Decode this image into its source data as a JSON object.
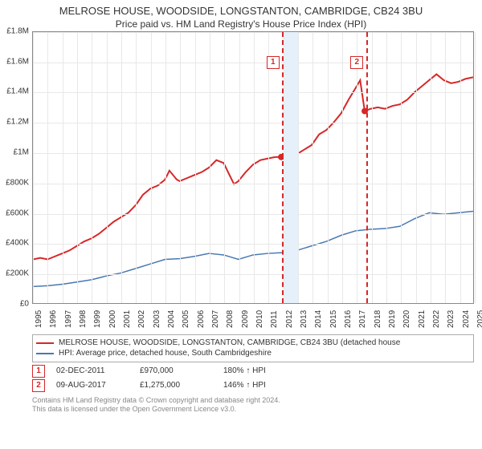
{
  "title": "MELROSE HOUSE, WOODSIDE, LONGSTANTON, CAMBRIDGE, CB24 3BU",
  "subtitle": "Price paid vs. HM Land Registry's House Price Index (HPI)",
  "chart": {
    "type": "line",
    "background_color": "#ffffff",
    "grid_color": "#e8e8e8",
    "border_color": "#888888",
    "y": {
      "min": 0,
      "max": 1800000,
      "step": 200000,
      "labels": [
        "£0",
        "£200K",
        "£400K",
        "£600K",
        "£800K",
        "£1M",
        "£1.2M",
        "£1.4M",
        "£1.6M",
        "£1.8M"
      ]
    },
    "x": {
      "min": 1995,
      "max": 2025,
      "labels": [
        "1995",
        "1996",
        "1997",
        "1998",
        "1999",
        "2000",
        "2001",
        "2002",
        "2003",
        "2004",
        "2005",
        "2006",
        "2007",
        "2008",
        "2009",
        "2010",
        "2011",
        "2012",
        "2013",
        "2014",
        "2015",
        "2016",
        "2017",
        "2018",
        "2019",
        "2020",
        "2021",
        "2022",
        "2023",
        "2024",
        "2025"
      ]
    },
    "band": {
      "start_year": 2012,
      "end_year": 2013,
      "color": "#e6f0fa"
    },
    "markers": [
      {
        "id": "1",
        "year": 2011.92,
        "box_year": 2011.3,
        "box_y": 1600000
      },
      {
        "id": "2",
        "year": 2017.61,
        "box_year": 2017.0,
        "box_y": 1600000
      }
    ],
    "marker_color": "#d62728",
    "series": [
      {
        "name": "red_house",
        "color": "#d62728",
        "width": 2,
        "label": "MELROSE HOUSE, WOODSIDE, LONGSTANTON, CAMBRIDGE, CB24 3BU (detached house",
        "points": [
          [
            1995,
            290000
          ],
          [
            1995.5,
            300000
          ],
          [
            1996,
            290000
          ],
          [
            1996.5,
            310000
          ],
          [
            1997,
            330000
          ],
          [
            1997.5,
            350000
          ],
          [
            1998,
            380000
          ],
          [
            1998.5,
            410000
          ],
          [
            1999,
            430000
          ],
          [
            1999.5,
            460000
          ],
          [
            2000,
            500000
          ],
          [
            2000.5,
            540000
          ],
          [
            2001,
            570000
          ],
          [
            2001.5,
            600000
          ],
          [
            2002,
            650000
          ],
          [
            2002.5,
            720000
          ],
          [
            2003,
            760000
          ],
          [
            2003.5,
            780000
          ],
          [
            2004,
            820000
          ],
          [
            2004.3,
            880000
          ],
          [
            2004.8,
            820000
          ],
          [
            2005,
            810000
          ],
          [
            2005.5,
            830000
          ],
          [
            2006,
            850000
          ],
          [
            2006.5,
            870000
          ],
          [
            2007,
            900000
          ],
          [
            2007.5,
            950000
          ],
          [
            2008,
            930000
          ],
          [
            2008.3,
            870000
          ],
          [
            2008.7,
            790000
          ],
          [
            2009,
            810000
          ],
          [
            2009.5,
            870000
          ],
          [
            2010,
            920000
          ],
          [
            2010.5,
            950000
          ],
          [
            2011,
            960000
          ],
          [
            2011.5,
            970000
          ],
          [
            2011.92,
            970000
          ],
          [
            2012.4,
            960000
          ],
          [
            2013,
            990000
          ],
          [
            2013.5,
            1020000
          ],
          [
            2014,
            1050000
          ],
          [
            2014.5,
            1120000
          ],
          [
            2015,
            1150000
          ],
          [
            2015.5,
            1200000
          ],
          [
            2016,
            1260000
          ],
          [
            2016.5,
            1350000
          ],
          [
            2017,
            1430000
          ],
          [
            2017.3,
            1480000
          ],
          [
            2017.61,
            1275000
          ],
          [
            2018,
            1290000
          ],
          [
            2018.5,
            1300000
          ],
          [
            2019,
            1290000
          ],
          [
            2019.5,
            1310000
          ],
          [
            2020,
            1320000
          ],
          [
            2020.5,
            1350000
          ],
          [
            2021,
            1400000
          ],
          [
            2021.5,
            1440000
          ],
          [
            2022,
            1480000
          ],
          [
            2022.5,
            1520000
          ],
          [
            2023,
            1480000
          ],
          [
            2023.5,
            1460000
          ],
          [
            2024,
            1470000
          ],
          [
            2024.5,
            1490000
          ],
          [
            2025,
            1500000
          ]
        ],
        "dots": [
          [
            2011.92,
            970000
          ],
          [
            2017.61,
            1275000
          ]
        ]
      },
      {
        "name": "blue_hpi",
        "color": "#4878b0",
        "width": 1.5,
        "label": "HPI: Average price, detached house, South Cambridgeshire",
        "points": [
          [
            1995,
            110000
          ],
          [
            1996,
            115000
          ],
          [
            1997,
            125000
          ],
          [
            1998,
            140000
          ],
          [
            1999,
            155000
          ],
          [
            2000,
            180000
          ],
          [
            2001,
            200000
          ],
          [
            2002,
            230000
          ],
          [
            2003,
            260000
          ],
          [
            2004,
            290000
          ],
          [
            2005,
            295000
          ],
          [
            2006,
            310000
          ],
          [
            2007,
            330000
          ],
          [
            2008,
            320000
          ],
          [
            2009,
            290000
          ],
          [
            2010,
            320000
          ],
          [
            2011,
            330000
          ],
          [
            2012,
            335000
          ],
          [
            2013,
            350000
          ],
          [
            2014,
            380000
          ],
          [
            2015,
            410000
          ],
          [
            2016,
            450000
          ],
          [
            2017,
            480000
          ],
          [
            2018,
            490000
          ],
          [
            2019,
            495000
          ],
          [
            2020,
            510000
          ],
          [
            2021,
            560000
          ],
          [
            2022,
            600000
          ],
          [
            2023,
            590000
          ],
          [
            2024,
            600000
          ],
          [
            2025,
            610000
          ]
        ]
      }
    ]
  },
  "legend": {
    "series1": "MELROSE HOUSE, WOODSIDE, LONGSTANTON, CAMBRIDGE, CB24 3BU (detached house",
    "series2": "HPI: Average price, detached house, South Cambridgeshire"
  },
  "data_rows": [
    {
      "id": "1",
      "date": "02-DEC-2011",
      "price": "£970,000",
      "pct": "180% ↑ HPI"
    },
    {
      "id": "2",
      "date": "09-AUG-2017",
      "price": "£1,275,000",
      "pct": "146% ↑ HPI"
    }
  ],
  "copyright": {
    "line1": "Contains HM Land Registry data © Crown copyright and database right 2024.",
    "line2": "This data is licensed under the Open Government Licence v3.0."
  }
}
